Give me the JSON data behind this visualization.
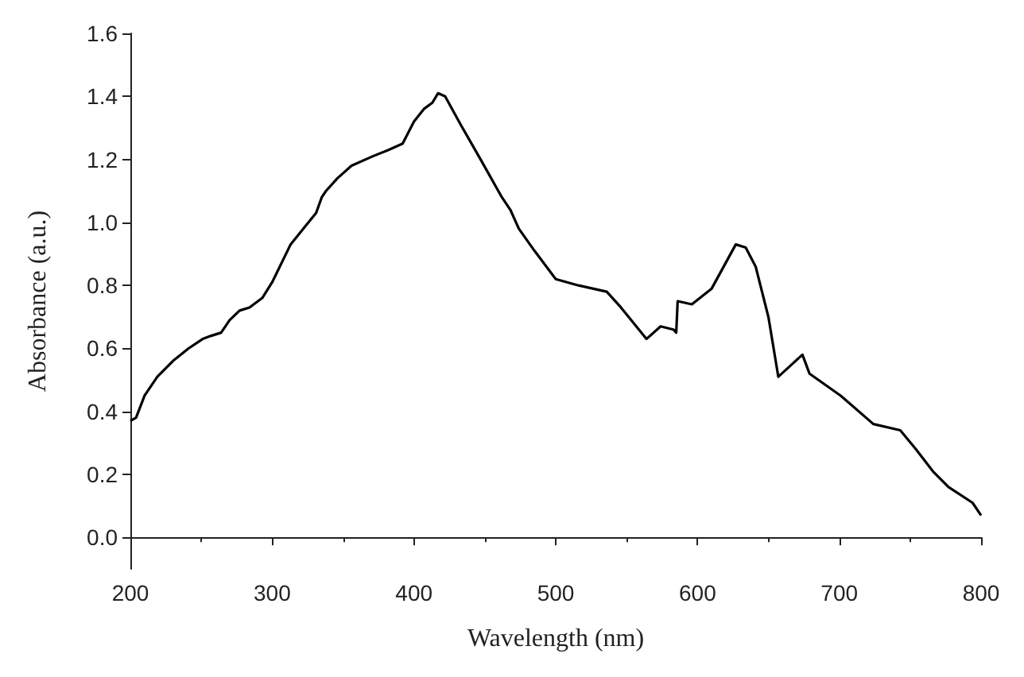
{
  "chart_data": {
    "type": "line",
    "xlabel": "Wavelength (nm)",
    "ylabel": "Absorbance (a.u.)",
    "xlim": [
      200,
      800
    ],
    "xticks": [
      200,
      300,
      400,
      500,
      600,
      700,
      800
    ],
    "ylim": [
      -0.1,
      1.6
    ],
    "yticks": [
      {
        "value": 0,
        "label": "0.0"
      },
      {
        "value": 0.2,
        "label": "0.2"
      },
      {
        "value": 0.4,
        "label": "0.4"
      },
      {
        "value": 0.6,
        "label": "0.6"
      },
      {
        "value": 0.8,
        "label": "0.8"
      },
      {
        "value": 1,
        "label": "1.0"
      },
      {
        "value": 1.2,
        "label": "1.2"
      },
      {
        "value": 1.4,
        "label": "1.4"
      },
      {
        "value": 1.6,
        "label": "1.6"
      }
    ],
    "marker": "none",
    "line_style": "solid",
    "series": [
      {
        "color": "#000000",
        "x": [
          200,
          204,
          210,
          219,
          230,
          241,
          251,
          257,
          264,
          270,
          277,
          284,
          293,
          300,
          313,
          322,
          331,
          335,
          338,
          346,
          356,
          371,
          382,
          392,
          400,
          407,
          413,
          417,
          422,
          433,
          447,
          462,
          468,
          474,
          485,
          500,
          516,
          536,
          546,
          564,
          574,
          583,
          585,
          586,
          596,
          610,
          627,
          634,
          641,
          650,
          657,
          674,
          679,
          701,
          724,
          743,
          754,
          766,
          777,
          794,
          800
        ],
        "values": [
          0.37,
          0.38,
          0.45,
          0.51,
          0.56,
          0.6,
          0.63,
          0.64,
          0.65,
          0.69,
          0.72,
          0.73,
          0.76,
          0.81,
          0.93,
          0.98,
          1.03,
          1.08,
          1.1,
          1.14,
          1.18,
          1.21,
          1.23,
          1.25,
          1.32,
          1.36,
          1.38,
          1.41,
          1.4,
          1.31,
          1.2,
          1.08,
          1.04,
          0.98,
          0.91,
          0.82,
          0.8,
          0.78,
          0.73,
          0.63,
          0.67,
          0.66,
          0.65,
          0.75,
          0.74,
          0.79,
          0.93,
          0.92,
          0.86,
          0.7,
          0.51,
          0.58,
          0.52,
          0.45,
          0.36,
          0.34,
          0.28,
          0.21,
          0.16,
          0.11,
          0.07
        ]
      }
    ]
  }
}
